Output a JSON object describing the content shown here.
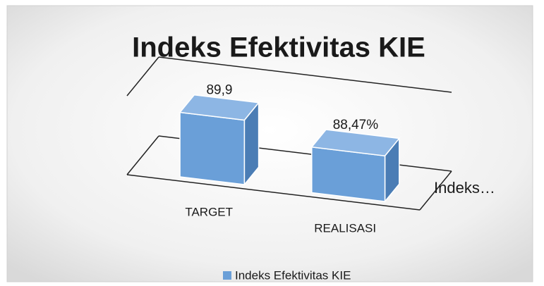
{
  "chart_data": {
    "type": "bar3d",
    "title": "Indeks Efektivitas KIE",
    "categories": [
      "TARGET",
      "REALISASI"
    ],
    "series": [
      {
        "name": "Indeks Efektivitas KIE",
        "color": "#6a9fd8",
        "values": [
          89.9,
          88.47
        ],
        "value_labels": [
          "89,9",
          "88,47%"
        ]
      }
    ],
    "depth_axis_label": "Indeks…",
    "ylim": [
      85,
      91
    ],
    "legend": "bottom"
  }
}
